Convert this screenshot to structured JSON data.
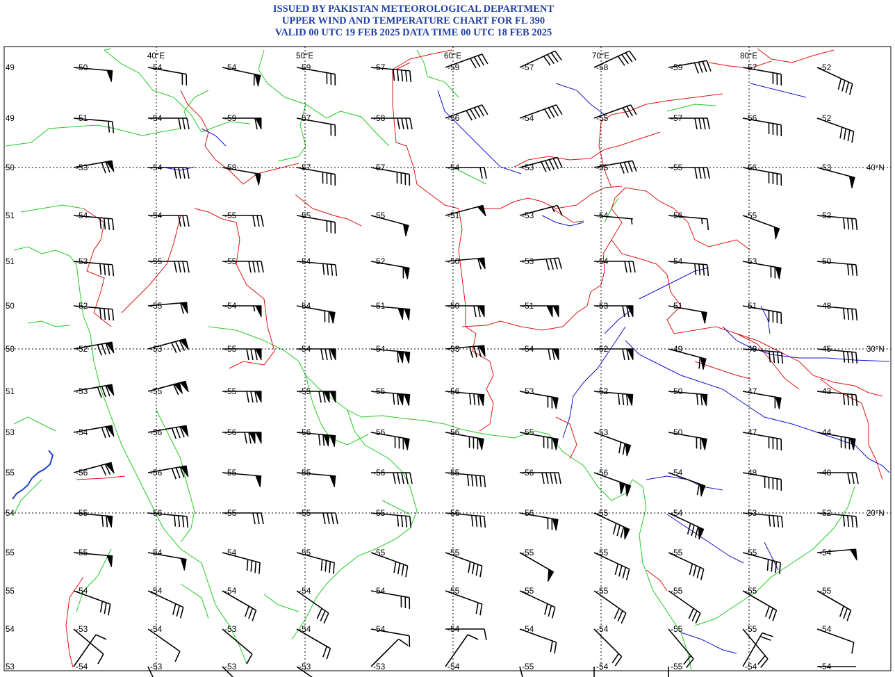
{
  "header": {
    "line1": "ISSUED BY PAKISTAN METEOROLOGICAL DEPARTMENT",
    "line2": "UPPER WIND AND TEMPERATURE CHART FOR FL 390",
    "line3": "VALID 00 UTC 19 FEB 2025 DATA TIME 00 UTC 18 FEB 2025"
  },
  "colors": {
    "title": "#1f3fa8",
    "coastline": "#22cc22",
    "border": "#dd1111",
    "river": "#1111cc",
    "grid": "#000000",
    "barb": "#000000"
  },
  "grid_labels": {
    "lon": [
      "40°E",
      "50°E",
      "60°E",
      "70°E",
      "80°E"
    ],
    "lat_right": [
      "40°N",
      "30°N",
      "20°N"
    ],
    "left_col": [
      "49",
      "49",
      "50",
      "51",
      "51",
      "50",
      "50",
      "51",
      "53",
      "55",
      "54",
      "55",
      "55",
      "54",
      "53"
    ]
  },
  "stations": [
    [
      {
        "t": "-50",
        "s": 1,
        "f": 0,
        "h": 0,
        "a": 95
      },
      {
        "t": "-54",
        "s": 0,
        "f": 2,
        "h": 0,
        "a": 100
      },
      {
        "t": "-54",
        "s": 1,
        "f": 1,
        "h": 0,
        "a": 102
      },
      {
        "t": "-59",
        "s": 0,
        "f": 3,
        "h": 0,
        "a": 100
      },
      {
        "t": "-57",
        "s": 0,
        "f": 5,
        "h": 0,
        "a": 95
      },
      {
        "t": "-59",
        "s": 0,
        "f": 4,
        "h": 0,
        "a": 70
      },
      {
        "t": "-57",
        "s": 0,
        "f": 4,
        "h": 0,
        "a": 65
      },
      {
        "t": "-58",
        "s": 0,
        "f": 4,
        "h": 0,
        "a": 65
      },
      {
        "t": "-59",
        "s": 0,
        "f": 4,
        "h": 0,
        "a": 80
      },
      {
        "t": "-57",
        "s": 0,
        "f": 3,
        "h": 0,
        "a": 100
      },
      {
        "t": "-52",
        "s": 0,
        "f": 4,
        "h": 0,
        "a": 115
      }
    ],
    [
      {
        "t": "-51",
        "s": 0,
        "f": 2,
        "h": 0,
        "a": 95
      },
      {
        "t": "-54",
        "s": 0,
        "f": 3,
        "h": 0,
        "a": 90
      },
      {
        "t": "-59",
        "s": 1,
        "f": 1,
        "h": 0,
        "a": 90
      },
      {
        "t": "-57",
        "s": 0,
        "f": 2,
        "h": 0,
        "a": 100
      },
      {
        "t": "-58",
        "s": 0,
        "f": 4,
        "h": 0,
        "a": 90
      },
      {
        "t": "-56",
        "s": 0,
        "f": 5,
        "h": 0,
        "a": 70
      },
      {
        "t": "-54",
        "s": 0,
        "f": 4,
        "h": 0,
        "a": 70
      },
      {
        "t": "-55",
        "s": 0,
        "f": 3,
        "h": 0,
        "a": 70
      },
      {
        "t": "-57",
        "s": 0,
        "f": 4,
        "h": 0,
        "a": 90
      },
      {
        "t": "-56",
        "s": 0,
        "f": 4,
        "h": 0,
        "a": 100
      },
      {
        "t": "-52",
        "s": 0,
        "f": 4,
        "h": 0,
        "a": 110
      }
    ],
    [
      {
        "t": "-53",
        "s": 1,
        "f": 2,
        "h": 0,
        "a": 80
      },
      {
        "t": "-54",
        "s": 0,
        "f": 4,
        "h": 0,
        "a": 90
      },
      {
        "t": "-58",
        "s": 1,
        "f": 0,
        "h": 0,
        "a": 100
      },
      {
        "t": "-57",
        "s": 0,
        "f": 4,
        "h": 0,
        "a": 100
      },
      {
        "t": "-57",
        "s": 0,
        "f": 4,
        "h": 0,
        "a": 100
      },
      {
        "t": "-54",
        "s": 0,
        "f": 2,
        "h": 0,
        "a": 90
      },
      {
        "t": "-53",
        "s": 0,
        "f": 5,
        "h": 0,
        "a": 75
      },
      {
        "t": "-55",
        "s": 0,
        "f": 4,
        "h": 0,
        "a": 80
      },
      {
        "t": "-55",
        "s": 0,
        "f": 4,
        "h": 0,
        "a": 90
      },
      {
        "t": "-56",
        "s": 0,
        "f": 4,
        "h": 0,
        "a": 100
      },
      {
        "t": "-53",
        "s": 1,
        "f": 0,
        "h": 0,
        "a": 105
      }
    ],
    [
      {
        "t": "-54",
        "s": 0,
        "f": 4,
        "h": 0,
        "a": 95
      },
      {
        "t": "-54",
        "s": 0,
        "f": 3,
        "h": 0,
        "a": 90
      },
      {
        "t": "-55",
        "s": 0,
        "f": 3,
        "h": 0,
        "a": 90
      },
      {
        "t": "-55",
        "s": 0,
        "f": 3,
        "h": 0,
        "a": 100
      },
      {
        "t": "-55",
        "s": 1,
        "f": 0,
        "h": 0,
        "a": 105
      },
      {
        "t": "-51",
        "s": 1,
        "f": 0,
        "h": 0,
        "a": 75
      },
      {
        "t": "-53",
        "s": 0,
        "f": 1,
        "h": 1,
        "a": 75
      },
      {
        "t": "-54",
        "s": 0,
        "f": 0,
        "h": 1,
        "a": 95
      },
      {
        "t": "-56",
        "s": 0,
        "f": 1,
        "h": 1,
        "a": 95
      },
      {
        "t": "-55",
        "s": 1,
        "f": 0,
        "h": 0,
        "a": 110
      },
      {
        "t": "-52",
        "s": 0,
        "f": 4,
        "h": 0,
        "a": 95
      }
    ],
    [
      {
        "t": "-53",
        "s": 0,
        "f": 4,
        "h": 0,
        "a": 95
      },
      {
        "t": "-55",
        "s": 0,
        "f": 4,
        "h": 0,
        "a": 90
      },
      {
        "t": "-55",
        "s": 0,
        "f": 4,
        "h": 0,
        "a": 90
      },
      {
        "t": "-54",
        "s": 0,
        "f": 4,
        "h": 0,
        "a": 95
      },
      {
        "t": "-52",
        "s": 1,
        "f": 1,
        "h": 0,
        "a": 100
      },
      {
        "t": "-50",
        "s": 1,
        "f": 1,
        "h": 0,
        "a": 85
      },
      {
        "t": "-53",
        "s": 0,
        "f": 4,
        "h": 0,
        "a": 85
      },
      {
        "t": "-54",
        "s": 0,
        "f": 3,
        "h": 0,
        "a": 90
      },
      {
        "t": "-54",
        "s": 0,
        "f": 4,
        "h": 0,
        "a": 95
      },
      {
        "t": "-53",
        "s": 1,
        "f": 2,
        "h": 0,
        "a": 100
      },
      {
        "t": "-50",
        "s": 0,
        "f": 3,
        "h": 0,
        "a": 95
      }
    ],
    [
      {
        "t": "-52",
        "s": 0,
        "f": 4,
        "h": 0,
        "a": 95
      },
      {
        "t": "-55",
        "s": 1,
        "f": 1,
        "h": 0,
        "a": 85
      },
      {
        "t": "-54",
        "s": 1,
        "f": 0,
        "h": 1,
        "a": 90
      },
      {
        "t": "-54",
        "s": 1,
        "f": 2,
        "h": 0,
        "a": 100
      },
      {
        "t": "-51",
        "s": 2,
        "f": 0,
        "h": 0,
        "a": 95
      },
      {
        "t": "-50",
        "s": 1,
        "f": 2,
        "h": 0,
        "a": 90
      },
      {
        "t": "-51",
        "s": 2,
        "f": 0,
        "h": 0,
        "a": 90
      },
      {
        "t": "-53",
        "s": 1,
        "f": 2,
        "h": 0,
        "a": 90
      },
      {
        "t": "-51",
        "s": 1,
        "f": 0,
        "h": 0,
        "a": 100
      },
      {
        "t": "-51",
        "s": 0,
        "f": 4,
        "h": 0,
        "a": 100
      },
      {
        "t": "-48",
        "s": 0,
        "f": 4,
        "h": 0,
        "a": 95
      }
    ],
    [
      {
        "t": "-52",
        "s": 1,
        "f": 3,
        "h": 0,
        "a": 80
      },
      {
        "t": "-53",
        "s": 1,
        "f": 3,
        "h": 0,
        "a": 75
      },
      {
        "t": "-55",
        "s": 1,
        "f": 3,
        "h": 0,
        "a": 90
      },
      {
        "t": "-54",
        "s": 1,
        "f": 3,
        "h": 0,
        "a": 90
      },
      {
        "t": "-54",
        "s": 2,
        "f": 1,
        "h": 0,
        "a": 95
      },
      {
        "t": "-53",
        "s": 1,
        "f": 3,
        "h": 0,
        "a": 85
      },
      {
        "t": "-54",
        "s": 1,
        "f": 2,
        "h": 0,
        "a": 90
      },
      {
        "t": "-52",
        "s": 1,
        "f": 2,
        "h": 0,
        "a": 90
      },
      {
        "t": "-49",
        "s": 1,
        "f": 1,
        "h": 0,
        "a": 105
      },
      {
        "t": "-49",
        "s": 0,
        "f": 4,
        "h": 0,
        "a": 95
      },
      {
        "t": "-45",
        "s": 0,
        "f": 4,
        "h": 0,
        "a": 95
      }
    ],
    [
      {
        "t": "-53",
        "s": 1,
        "f": 3,
        "h": 0,
        "a": 80
      },
      {
        "t": "-55",
        "s": 2,
        "f": 1,
        "h": 0,
        "a": 75
      },
      {
        "t": "-55",
        "s": 1,
        "f": 3,
        "h": 0,
        "a": 90
      },
      {
        "t": "-55",
        "s": 2,
        "f": 2,
        "h": 0,
        "a": 90
      },
      {
        "t": "-55",
        "s": 2,
        "f": 2,
        "h": 0,
        "a": 95
      },
      {
        "t": "-56",
        "s": 1,
        "f": 3,
        "h": 0,
        "a": 95
      },
      {
        "t": "-53",
        "s": 1,
        "f": 2,
        "h": 0,
        "a": 100
      },
      {
        "t": "-52",
        "s": 1,
        "f": 3,
        "h": 0,
        "a": 95
      },
      {
        "t": "-50",
        "s": 1,
        "f": 2,
        "h": 0,
        "a": 95
      },
      {
        "t": "-47",
        "s": 1,
        "f": 1,
        "h": 0,
        "a": 100
      },
      {
        "t": "-43",
        "s": 0,
        "f": 4,
        "h": 0,
        "a": 95
      }
    ],
    [
      {
        "t": "-54",
        "s": 1,
        "f": 2,
        "h": 0,
        "a": 80
      },
      {
        "t": "-56",
        "s": 1,
        "f": 3,
        "h": 0,
        "a": 80
      },
      {
        "t": "-56",
        "s": 2,
        "f": 2,
        "h": 0,
        "a": 90
      },
      {
        "t": "-56",
        "s": 2,
        "f": 2,
        "h": 0,
        "a": 95
      },
      {
        "t": "-56",
        "s": 1,
        "f": 3,
        "h": 0,
        "a": 100
      },
      {
        "t": "-56",
        "s": 1,
        "f": 3,
        "h": 0,
        "a": 100
      },
      {
        "t": "-55",
        "s": 1,
        "f": 3,
        "h": 0,
        "a": 100
      },
      {
        "t": "-53",
        "s": 1,
        "f": 2,
        "h": 0,
        "a": 110
      },
      {
        "t": "-50",
        "s": 1,
        "f": 2,
        "h": 0,
        "a": 100
      },
      {
        "t": "-47",
        "s": 0,
        "f": 4,
        "h": 0,
        "a": 100
      },
      {
        "t": "-44",
        "s": 1,
        "f": 3,
        "h": 0,
        "a": 100
      }
    ],
    [
      {
        "t": "-56",
        "s": 1,
        "f": 2,
        "h": 0,
        "a": 75
      },
      {
        "t": "-56",
        "s": 1,
        "f": 3,
        "h": 0,
        "a": 80
      },
      {
        "t": "-55",
        "s": 1,
        "f": 0,
        "h": 0,
        "a": 95
      },
      {
        "t": "-55",
        "s": 1,
        "f": 0,
        "h": 0,
        "a": 95
      },
      {
        "t": "-56",
        "s": 0,
        "f": 5,
        "h": 0,
        "a": 90
      },
      {
        "t": "-55",
        "s": 0,
        "f": 5,
        "h": 0,
        "a": 95
      },
      {
        "t": "-56",
        "s": 0,
        "f": 5,
        "h": 0,
        "a": 90
      },
      {
        "t": "-56",
        "s": 2,
        "f": 0,
        "h": 0,
        "a": 110
      },
      {
        "t": "-54",
        "s": 1,
        "f": 1,
        "h": 0,
        "a": 110
      },
      {
        "t": "-48",
        "s": 0,
        "f": 5,
        "h": 0,
        "a": 100
      },
      {
        "t": "-48",
        "s": 0,
        "f": 3,
        "h": 0,
        "a": 90
      }
    ],
    [
      {
        "t": "-55",
        "s": 1,
        "f": 2,
        "h": 0,
        "a": 95
      },
      {
        "t": "-56",
        "s": 0,
        "f": 4,
        "h": 0,
        "a": 95
      },
      {
        "t": "-55",
        "s": 0,
        "f": 3,
        "h": 0,
        "a": 90
      },
      {
        "t": "-55",
        "s": 0,
        "f": 4,
        "h": 0,
        "a": 90
      },
      {
        "t": "-55",
        "s": 0,
        "f": 4,
        "h": 0,
        "a": 95
      },
      {
        "t": "-56",
        "s": 0,
        "f": 4,
        "h": 0,
        "a": 95
      },
      {
        "t": "-56",
        "s": 1,
        "f": 2,
        "h": 0,
        "a": 100
      },
      {
        "t": "-55",
        "s": 1,
        "f": 3,
        "h": 0,
        "a": 115
      },
      {
        "t": "-54",
        "s": 1,
        "f": 3,
        "h": 0,
        "a": 115
      },
      {
        "t": "-53",
        "s": 0,
        "f": 4,
        "h": 0,
        "a": 95
      },
      {
        "t": "-52",
        "s": 0,
        "f": 4,
        "h": 0,
        "a": 95
      }
    ],
    [
      {
        "t": "-55",
        "s": 1,
        "f": 0,
        "h": 0,
        "a": 95
      },
      {
        "t": "-54",
        "s": 1,
        "f": 0,
        "h": 0,
        "a": 100
      },
      {
        "t": "-54",
        "s": 0,
        "f": 4,
        "h": 0,
        "a": 105
      },
      {
        "t": "-55",
        "s": 0,
        "f": 4,
        "h": 0,
        "a": 105
      },
      {
        "t": "-55",
        "s": 0,
        "f": 4,
        "h": 0,
        "a": 110
      },
      {
        "t": "-55",
        "s": 0,
        "f": 4,
        "h": 0,
        "a": 110
      },
      {
        "t": "-55",
        "s": 1,
        "f": 0,
        "h": 0,
        "a": 120
      },
      {
        "t": "-55",
        "s": 0,
        "f": 4,
        "h": 0,
        "a": 115
      },
      {
        "t": "-55",
        "s": 0,
        "f": 4,
        "h": 0,
        "a": 115
      },
      {
        "t": "-55",
        "s": 0,
        "f": 4,
        "h": 0,
        "a": 105
      },
      {
        "t": "-54",
        "s": 1,
        "f": 0,
        "h": 0,
        "a": 85
      }
    ],
    [
      {
        "t": "-54",
        "s": 0,
        "f": 3,
        "h": 0,
        "a": 110
      },
      {
        "t": "-54",
        "s": 0,
        "f": 3,
        "h": 0,
        "a": 115
      },
      {
        "t": "-54",
        "s": 0,
        "f": 3,
        "h": 0,
        "a": 120
      },
      {
        "t": "-54",
        "s": 0,
        "f": 3,
        "h": 0,
        "a": 125
      },
      {
        "t": "-54",
        "s": 0,
        "f": 3,
        "h": 0,
        "a": 100
      },
      {
        "t": "-55",
        "s": 0,
        "f": 2,
        "h": 0,
        "a": 110
      },
      {
        "t": "-55",
        "s": 0,
        "f": 3,
        "h": 0,
        "a": 115
      },
      {
        "t": "-55",
        "s": 0,
        "f": 3,
        "h": 0,
        "a": 125
      },
      {
        "t": "-55",
        "s": 0,
        "f": 3,
        "h": 0,
        "a": 125
      },
      {
        "t": "-55",
        "s": 0,
        "f": 3,
        "h": 0,
        "a": 120
      },
      {
        "t": "-55",
        "s": 0,
        "f": 3,
        "h": 0,
        "a": 120
      }
    ],
    [
      {
        "t": "-53",
        "s": 0,
        "f": 1,
        "h": 0,
        "a": 130
      },
      {
        "t": "-54",
        "s": 0,
        "f": 1,
        "h": 0,
        "a": 125
      },
      {
        "t": "-53",
        "s": 0,
        "f": 1,
        "h": 0,
        "a": 130
      },
      {
        "t": "-54",
        "s": 0,
        "f": 2,
        "h": 0,
        "a": 120
      },
      {
        "t": "-54",
        "s": 0,
        "f": 1,
        "h": 0,
        "a": 100
      },
      {
        "t": "-54",
        "s": 0,
        "f": 1,
        "h": 0,
        "a": 90
      },
      {
        "t": "-54",
        "s": 0,
        "f": 2,
        "h": 0,
        "a": 110
      },
      {
        "t": "-54",
        "s": 0,
        "f": 2,
        "h": 0,
        "a": 135
      },
      {
        "t": "-55",
        "s": 0,
        "f": 2,
        "h": 0,
        "a": 140
      },
      {
        "t": "-55",
        "s": 0,
        "f": 2,
        "h": 0,
        "a": 140
      },
      {
        "t": "-54",
        "s": 0,
        "f": 1,
        "h": 0,
        "a": 110
      }
    ],
    [
      {
        "t": "-54",
        "s": 0,
        "f": 1,
        "h": 0,
        "a": 35
      },
      {
        "t": "-53",
        "s": 0,
        "f": 1,
        "h": 0,
        "a": 155
      },
      {
        "t": "-53",
        "s": 0,
        "f": 1,
        "h": 0,
        "a": 135
      },
      {
        "t": "-53",
        "s": 0,
        "f": 1,
        "h": 0,
        "a": 125
      },
      {
        "t": "-53",
        "s": 0,
        "f": 1,
        "h": 0,
        "a": 45
      },
      {
        "t": "-54",
        "s": 0,
        "f": 1,
        "h": 0,
        "a": 35
      },
      {
        "t": "-55",
        "s": 0,
        "f": 0,
        "h": 0,
        "a": 165
      },
      {
        "t": "-54",
        "s": 0,
        "f": 0,
        "h": 0,
        "a": 180
      },
      {
        "t": "-55",
        "s": 0,
        "f": 0,
        "h": 0,
        "a": 180
      },
      {
        "t": "-54",
        "s": 0,
        "f": 2,
        "h": 0,
        "a": 30
      },
      {
        "t": "-54",
        "s": 0,
        "f": 0,
        "h": 0,
        "a": 90
      }
    ]
  ]
}
